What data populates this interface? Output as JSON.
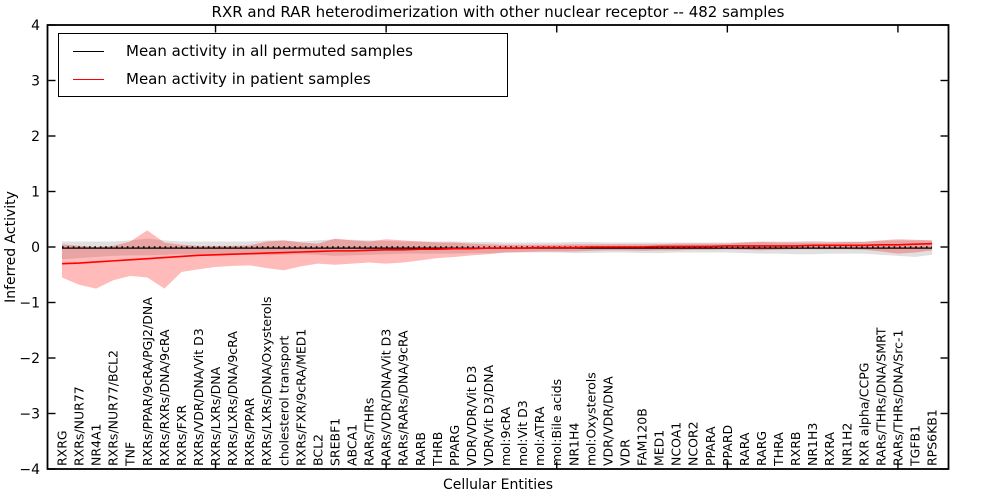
{
  "chart_data": {
    "type": "line",
    "title": "RXR and RAR heterodimerization with other nuclear receptor -- 482 samples",
    "xlabel": "Cellular Entities",
    "ylabel": "Inferred Activity",
    "ylim": [
      -4,
      4
    ],
    "yticks": [
      4,
      3,
      2,
      1,
      0,
      -1,
      -2,
      -3,
      -4
    ],
    "xticks_numeric": [
      10,
      20,
      30,
      40,
      50
    ],
    "grid": false,
    "legend_position": "upper left",
    "background_color": "#ffffff",
    "zero_line": {
      "value": 0,
      "style": "dotted",
      "color": "#000000"
    },
    "categories": [
      "RXRG",
      "RXRs/NUR77",
      "NR4A1",
      "RXRs/NUR77/BCL2",
      "TNF",
      "RXRs/PPAR/9cRA/PGJ2/DNA",
      "RXRs/RXRs/DNA/9cRA",
      "RXRs/FXR",
      "RXRs/VDR/DNA/Vit D3",
      "RXRs/LXRs/DNA",
      "RXRs/LXRs/DNA/9cRA",
      "RXRs/PPAR",
      "RXRs/LXRs/DNA/Oxysterols",
      "cholesterol transport",
      "RXRs/FXR/9cRA/MED1",
      "BCL2",
      "SREBF1",
      "ABCA1",
      "RARs/THRs",
      "RARs/VDR/DNA/Vit D3",
      "RARs/RARs/DNA/9cRA",
      "RARB",
      "THRB",
      "PPARG",
      "VDR/VDR/Vit D3",
      "VDR/Vit D3/DNA",
      "mol:9cRA",
      "mol:Vit D3",
      "mol:ATRA",
      "mol:Bile acids",
      "NR1H4",
      "mol:Oxysterols",
      "VDR/VDR/DNA",
      "VDR",
      "FAM120B",
      "MED1",
      "NCOA1",
      "NCOR2",
      "PPARA",
      "PPARD",
      "RARA",
      "RARG",
      "THRA",
      "RXRB",
      "NR1H3",
      "RXRA",
      "NR1H2",
      "RXR alpha/CCPG",
      "RARs/THRs/DNA/SMRT",
      "RARs/THRs/DNA/Src-1",
      "TGFB1",
      "RPS6KB1"
    ],
    "series": [
      {
        "name": "Mean activity in all permuted samples",
        "color": "#000000",
        "values": [
          -0.02,
          -0.02,
          -0.02,
          -0.02,
          -0.02,
          -0.02,
          -0.02,
          -0.02,
          -0.02,
          -0.02,
          -0.02,
          -0.02,
          -0.02,
          -0.02,
          -0.02,
          -0.02,
          -0.02,
          -0.02,
          -0.02,
          -0.02,
          -0.02,
          -0.02,
          -0.02,
          -0.02,
          -0.02,
          -0.02,
          -0.02,
          -0.02,
          -0.02,
          -0.02,
          -0.02,
          -0.02,
          -0.02,
          -0.02,
          -0.02,
          -0.02,
          -0.02,
          -0.02,
          -0.02,
          -0.02,
          -0.02,
          -0.02,
          -0.02,
          -0.02,
          -0.02,
          -0.02,
          -0.02,
          -0.02,
          -0.02,
          -0.02,
          -0.02,
          -0.02
        ]
      },
      {
        "name": "Mean activity in patient samples",
        "color": "#ff0000",
        "values": [
          -0.3,
          -0.29,
          -0.27,
          -0.25,
          -0.23,
          -0.21,
          -0.19,
          -0.17,
          -0.15,
          -0.14,
          -0.13,
          -0.12,
          -0.11,
          -0.1,
          -0.09,
          -0.08,
          -0.07,
          -0.07,
          -0.06,
          -0.05,
          -0.05,
          -0.04,
          -0.04,
          -0.03,
          -0.03,
          -0.02,
          -0.02,
          -0.02,
          -0.01,
          -0.01,
          -0.01,
          0.0,
          0.0,
          0.0,
          0.0,
          0.01,
          0.01,
          0.01,
          0.01,
          0.02,
          0.02,
          0.02,
          0.02,
          0.02,
          0.03,
          0.03,
          0.03,
          0.03,
          0.04,
          0.04,
          0.05,
          0.06
        ]
      }
    ],
    "bands": [
      {
        "name": "permuted-samples-range",
        "color": "#000000",
        "opacity": 0.12,
        "lo": [
          -0.22,
          -0.2,
          -0.18,
          -0.16,
          -0.15,
          -0.15,
          -0.14,
          -0.13,
          -0.13,
          -0.13,
          -0.13,
          -0.14,
          -0.15,
          -0.14,
          -0.13,
          -0.14,
          -0.16,
          -0.15,
          -0.14,
          -0.13,
          -0.12,
          -0.12,
          -0.12,
          -0.12,
          -0.11,
          -0.11,
          -0.1,
          -0.1,
          -0.1,
          -0.1,
          -0.11,
          -0.11,
          -0.1,
          -0.1,
          -0.11,
          -0.11,
          -0.1,
          -0.1,
          -0.1,
          -0.1,
          -0.11,
          -0.12,
          -0.12,
          -0.13,
          -0.13,
          -0.12,
          -0.12,
          -0.12,
          -0.14,
          -0.16,
          -0.18,
          -0.14
        ],
        "hi": [
          0.1,
          0.1,
          0.1,
          0.1,
          0.12,
          0.15,
          0.12,
          0.1,
          0.1,
          0.1,
          0.1,
          0.1,
          0.12,
          0.12,
          0.1,
          0.12,
          0.14,
          0.13,
          0.12,
          0.11,
          0.1,
          0.1,
          0.1,
          0.1,
          0.09,
          0.09,
          0.08,
          0.08,
          0.08,
          0.08,
          0.09,
          0.09,
          0.08,
          0.08,
          0.08,
          0.08,
          0.08,
          0.08,
          0.08,
          0.08,
          0.09,
          0.1,
          0.1,
          0.1,
          0.11,
          0.1,
          0.1,
          0.1,
          0.11,
          0.12,
          0.12,
          0.12
        ]
      },
      {
        "name": "patient-samples-range",
        "color": "#ff0000",
        "opacity": 0.27,
        "lo": [
          -0.55,
          -0.68,
          -0.75,
          -0.6,
          -0.52,
          -0.55,
          -0.75,
          -0.45,
          -0.4,
          -0.36,
          -0.34,
          -0.33,
          -0.38,
          -0.42,
          -0.35,
          -0.3,
          -0.32,
          -0.3,
          -0.28,
          -0.3,
          -0.28,
          -0.24,
          -0.2,
          -0.18,
          -0.15,
          -0.13,
          -0.1,
          -0.09,
          -0.08,
          -0.08,
          -0.08,
          -0.07,
          -0.06,
          -0.06,
          -0.07,
          -0.06,
          -0.06,
          -0.05,
          -0.05,
          -0.04,
          -0.05,
          -0.06,
          -0.05,
          -0.04,
          -0.04,
          -0.04,
          -0.04,
          -0.05,
          -0.08,
          -0.12,
          -0.1,
          -0.06
        ],
        "hi": [
          0.05,
          0.02,
          0.0,
          0.02,
          0.1,
          0.3,
          0.08,
          0.04,
          0.02,
          0.02,
          0.02,
          0.03,
          0.1,
          0.12,
          0.08,
          0.06,
          0.15,
          0.12,
          0.1,
          0.14,
          0.12,
          0.1,
          0.08,
          0.08,
          0.06,
          0.05,
          0.04,
          0.04,
          0.04,
          0.04,
          0.05,
          0.05,
          0.05,
          0.05,
          0.05,
          0.05,
          0.06,
          0.06,
          0.06,
          0.06,
          0.08,
          0.09,
          0.08,
          0.08,
          0.08,
          0.08,
          0.09,
          0.09,
          0.12,
          0.14,
          0.13,
          0.12
        ]
      }
    ]
  }
}
